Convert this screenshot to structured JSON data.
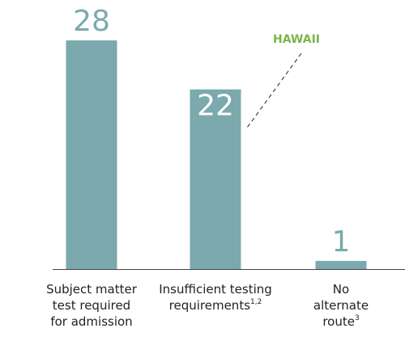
{
  "chart_data": {
    "type": "bar",
    "categories": [
      "Subject matter test required for admission",
      "Insufficient testing requirements",
      "No alternate route"
    ],
    "category_footnotes": [
      null,
      "1,2",
      "3"
    ],
    "values": [
      28,
      22,
      1
    ],
    "color": "#7ba9ad",
    "annotation": "HAWAII",
    "annotation_color": "#7ab648"
  }
}
